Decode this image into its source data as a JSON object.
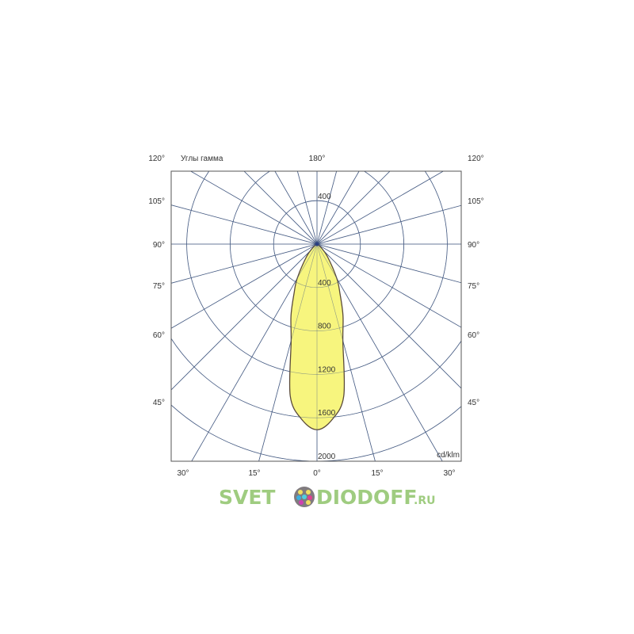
{
  "chart_data": {
    "type": "polar",
    "title": "Углы гамма",
    "unit_label": "cd/klm",
    "radial_ticks": [
      400,
      800,
      1200,
      1600,
      2000
    ],
    "upper_radial_tick": "400",
    "rmax": 2000,
    "grid": true,
    "spoke_step_deg": 15,
    "angle_labels_side": [
      {
        "text": "120°",
        "angle": 120
      },
      {
        "text": "105°",
        "angle": 105
      },
      {
        "text": "90°",
        "angle": 90
      },
      {
        "text": "75°",
        "angle": 75
      },
      {
        "text": "60°",
        "angle": 60
      },
      {
        "text": "45°",
        "angle": 45
      }
    ],
    "angle_labels_bottom": [
      {
        "text": "30°",
        "angle": 30
      },
      {
        "text": "15°",
        "angle": 15
      },
      {
        "text": "0°",
        "angle": 0
      }
    ],
    "top_label": "180°",
    "series": [
      {
        "gamma": [
          0,
          5,
          10,
          15,
          20,
          25,
          30,
          40,
          50,
          60,
          90
        ],
        "intensity": [
          1710,
          1620,
          1420,
          920,
          700,
          500,
          365,
          150,
          50,
          10,
          0
        ]
      }
    ],
    "colors": {
      "fill": "#f7f57e",
      "outline": "#5a4a3a",
      "grid": "#4a5f86",
      "frame": "#555555"
    }
  },
  "watermark": {
    "text_left": "SVET",
    "text_right": "DIODOFF",
    "suffix": ".RU"
  }
}
